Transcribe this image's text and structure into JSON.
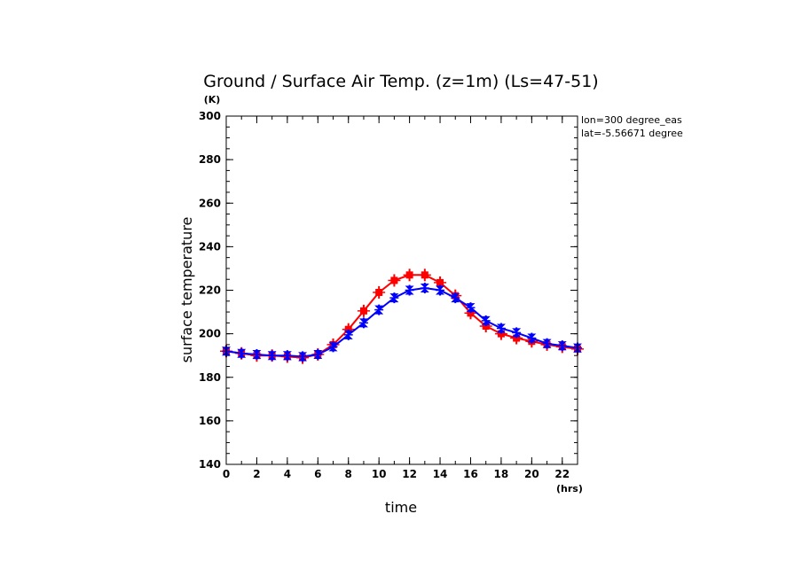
{
  "chart_data": {
    "type": "line",
    "title": "Ground / Surface Air Temp. (z=1m) (Ls=47-51)",
    "xlabel": "time",
    "ylabel": "surface temperature",
    "x_unit": "(hrs)",
    "y_unit": "(K)",
    "xlim": [
      0,
      23
    ],
    "ylim": [
      140,
      300
    ],
    "xticks": [
      0,
      2,
      4,
      6,
      8,
      10,
      12,
      14,
      16,
      18,
      20,
      22
    ],
    "yticks": [
      140,
      160,
      180,
      200,
      220,
      240,
      260,
      280,
      300
    ],
    "annotations": [
      "lon=300 degree_eas",
      "lat=-5.56671 degree"
    ],
    "x": [
      0,
      1,
      2,
      3,
      4,
      5,
      6,
      7,
      8,
      9,
      10,
      11,
      12,
      13,
      14,
      15,
      16,
      17,
      18,
      19,
      20,
      21,
      22,
      23
    ],
    "series": [
      {
        "color": "#ff0000",
        "marker": "square-plus",
        "values": [
          192,
          191,
          190,
          190,
          189.5,
          189,
          190.5,
          195,
          202,
          210.5,
          219,
          224.5,
          227,
          227,
          223.5,
          217.5,
          209.5,
          203.5,
          200,
          198,
          196.5,
          195,
          194,
          193
        ]
      },
      {
        "color": "#0000ff",
        "marker": "bowtie-plus",
        "values": [
          192,
          191,
          190.5,
          190,
          190,
          189.5,
          190.5,
          194,
          199.5,
          205,
          211,
          216.5,
          220,
          221,
          220,
          216.5,
          212,
          206,
          202.5,
          200.5,
          198,
          195.5,
          194.5,
          193.5
        ]
      }
    ]
  }
}
